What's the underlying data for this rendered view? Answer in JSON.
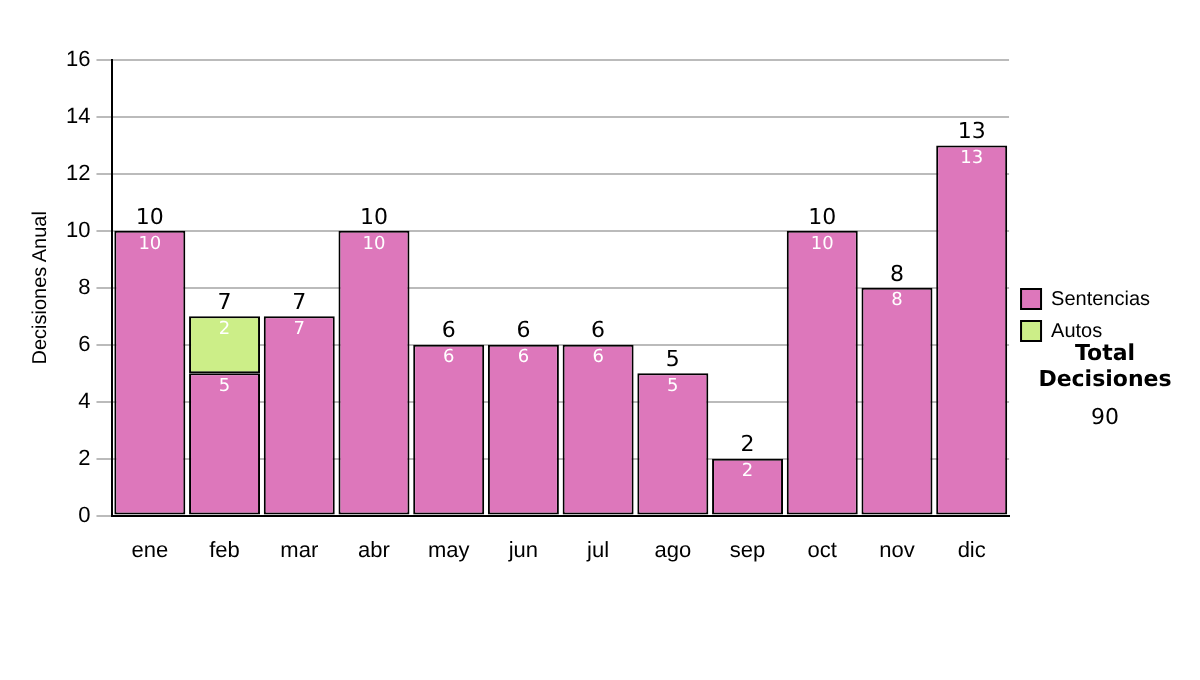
{
  "chart_data": {
    "type": "bar",
    "stacked": true,
    "ylabel": "Decisiones Anual",
    "categories": [
      "ene",
      "feb",
      "mar",
      "abr",
      "may",
      "jun",
      "jul",
      "ago",
      "sep",
      "oct",
      "nov",
      "dic"
    ],
    "series": [
      {
        "name": "Sentencias",
        "color": "#dd77bb",
        "values": [
          10,
          5,
          7,
          10,
          6,
          6,
          6,
          5,
          2,
          10,
          8,
          13
        ]
      },
      {
        "name": "Autos",
        "color": "#ccee88",
        "values": [
          null,
          2,
          null,
          null,
          null,
          null,
          null,
          null,
          null,
          null,
          null,
          null
        ]
      }
    ],
    "ylim": [
      0,
      16
    ],
    "yticks": [
      0,
      2,
      4,
      6,
      8,
      10,
      12,
      14,
      16
    ],
    "grid": "y",
    "legend": "right",
    "data_labels": true,
    "totals": [
      "10",
      "7",
      "7",
      "10",
      "6",
      "6",
      "6",
      "5",
      "2",
      "10",
      "8",
      "13"
    ],
    "annotations": [
      "Total Decisiones",
      "90"
    ]
  }
}
